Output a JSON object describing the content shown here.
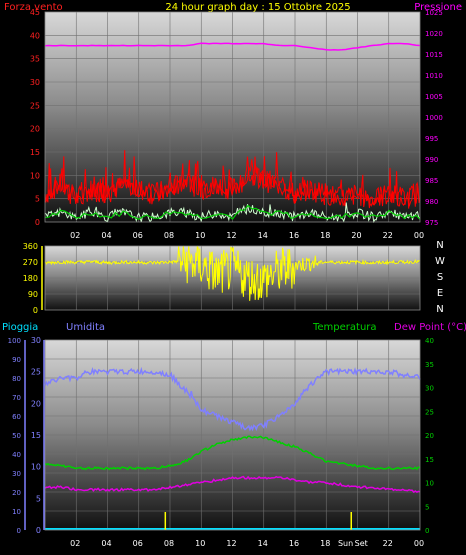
{
  "header": {
    "left_label": "Forza vento",
    "title": "24 hour graph day : 15 Ottobre 2025",
    "right_label": "Pressione"
  },
  "colors": {
    "wind": "#ff0000",
    "gust": "#00cc00",
    "pressure": "#ff00ff",
    "direction": "#ffff00",
    "humidity": "#8080ff",
    "temperature": "#00d000",
    "dewpoint": "#e000e0",
    "rain": "#00e0ff",
    "grid": "#707070",
    "axis_text_left": "#ff2020",
    "axis_text_right": "#ff00ff"
  },
  "bottom_header": {
    "rain_label": "Pioggia",
    "humidity_label": "Umidita",
    "temperature_label": "Temperatura",
    "dewpoint_label": "Dew Point (°C)"
  },
  "compass": [
    "N",
    "W",
    "S",
    "E",
    "N"
  ],
  "x_ticks": [
    "02",
    "04",
    "06",
    "08",
    "10",
    "12",
    "14",
    "16",
    "18",
    "20",
    "22",
    "00"
  ],
  "bottom_x_ticks": [
    "02",
    "04",
    "06",
    "08",
    "10",
    "12",
    "14",
    "16",
    "18",
    "Sun",
    "Set",
    "22",
    "00"
  ],
  "chart_data": [
    {
      "type": "line",
      "panel": "wind_pressure",
      "x": [
        0,
        1,
        2,
        3,
        4,
        5,
        6,
        7,
        8,
        9,
        10,
        11,
        12,
        13,
        14,
        15,
        16,
        17,
        18,
        19,
        20,
        21,
        22,
        23,
        24
      ],
      "y_left_ticks": [
        "0",
        "5",
        "10",
        "15",
        "20",
        "25",
        "30",
        "35",
        "40",
        "45"
      ],
      "y_left_range": [
        0,
        45
      ],
      "y_right_ticks": [
        "975",
        "980",
        "985",
        "990",
        "995",
        "1000",
        "1005",
        "1010",
        "1015",
        "1020",
        "1025"
      ],
      "y_right_range": [
        975,
        1025
      ],
      "series": [
        {
          "name": "Forza vento",
          "axis": "left",
          "values": [
            6,
            8,
            5,
            7,
            6,
            8,
            7,
            6,
            7,
            9,
            7,
            8,
            7,
            10,
            9,
            8,
            6,
            7,
            6,
            5,
            6,
            5,
            6,
            5,
            6
          ]
        },
        {
          "name": "Pressione",
          "axis": "right",
          "values": [
            1017,
            1017,
            1017,
            1017,
            1017,
            1017,
            1017,
            1017,
            1017,
            1017,
            1017.5,
            1017.5,
            1017.5,
            1017.5,
            1017.5,
            1017,
            1017,
            1016.5,
            1016,
            1016,
            1016.5,
            1017,
            1017.5,
            1017.5,
            1017
          ]
        },
        {
          "axis": "left",
          "values": [
            1,
            2,
            1,
            2,
            1,
            2,
            1,
            1,
            2,
            2,
            1,
            2,
            1,
            3,
            2,
            2,
            1,
            2,
            1,
            1,
            2,
            1,
            2,
            1,
            1
          ]
        }
      ]
    },
    {
      "type": "line",
      "panel": "wind_direction",
      "x": [
        0,
        1,
        2,
        3,
        4,
        5,
        6,
        7,
        8,
        9,
        10,
        11,
        12,
        13,
        14,
        15,
        16,
        17,
        18,
        19,
        20,
        21,
        22,
        23,
        24
      ],
      "y_ticks": [
        "0",
        "90",
        "180",
        "270",
        "360"
      ],
      "y_range": [
        0,
        360
      ],
      "series": [
        {
          "values": [
            265,
            270,
            268,
            272,
            265,
            270,
            268,
            266,
            270,
            275,
            250,
            200,
            230,
            180,
            170,
            220,
            250,
            265,
            270,
            268,
            270,
            265,
            268,
            270,
            272
          ]
        }
      ]
    },
    {
      "type": "line",
      "panel": "humidity_temperature",
      "x": [
        0,
        1,
        2,
        3,
        4,
        5,
        6,
        7,
        8,
        9,
        10,
        11,
        12,
        13,
        14,
        15,
        16,
        17,
        18,
        19,
        20,
        21,
        22,
        23,
        24
      ],
      "y_left_ticks": [
        "0",
        "10",
        "20",
        "30",
        "40",
        "50",
        "60",
        "70",
        "80",
        "90",
        "100"
      ],
      "y_left_range": [
        0,
        100
      ],
      "y_mid_ticks": [
        "0",
        "5",
        "10",
        "15",
        "20",
        "25",
        "30"
      ],
      "y_mid_range": [
        0,
        30
      ],
      "y_right_ticks": [
        "0",
        "5",
        "10",
        "15",
        "20",
        "25",
        "30",
        "35",
        "40"
      ],
      "y_right_range": [
        0,
        40
      ],
      "series": [
        {
          "name": "Umidita",
          "axis": "mid",
          "values": [
            23,
            24,
            24,
            25,
            25,
            25,
            25,
            25,
            24.5,
            22,
            19,
            18,
            17,
            16,
            16.5,
            18,
            20,
            23,
            25,
            25,
            25,
            25,
            25,
            24.5,
            24
          ]
        },
        {
          "name": "Temperatura",
          "axis": "right",
          "values": [
            14,
            13.5,
            13,
            13,
            13,
            13,
            13,
            13,
            13.5,
            14.5,
            16.5,
            18,
            19,
            19.5,
            19.5,
            18.5,
            17.5,
            16,
            14.5,
            14,
            13.5,
            13,
            13,
            13,
            13
          ]
        },
        {
          "name": "Dew Point (°C)",
          "axis": "right",
          "values": [
            9,
            9,
            8.5,
            8.5,
            8.5,
            8.5,
            8.5,
            8.5,
            9,
            9.5,
            10,
            10.5,
            11,
            11,
            11,
            11,
            10.5,
            10,
            10,
            9.5,
            9,
            9,
            8.5,
            8.5,
            8
          ]
        },
        {
          "name": "Pioggia",
          "axis": "left",
          "values": [
            0,
            0,
            0,
            0,
            0,
            0,
            0,
            0,
            0,
            0,
            0,
            0,
            0,
            0,
            0,
            0,
            0,
            0,
            0,
            0,
            0,
            0,
            0,
            0,
            0
          ]
        }
      ]
    }
  ]
}
